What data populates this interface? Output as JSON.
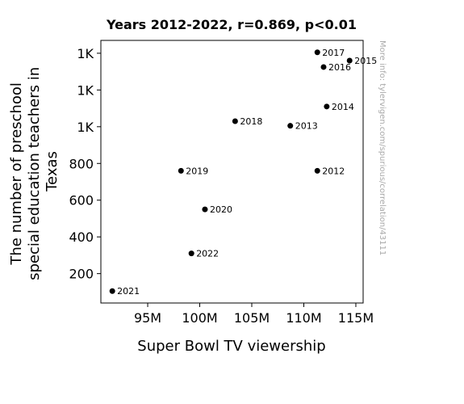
{
  "chart_data": {
    "type": "scatter",
    "title": "Years 2012-2022, r=0.869, p<0.01",
    "xlabel": "Super Bowl TV viewership",
    "ylabel": [
      "The number of preschool",
      "special education teachers in",
      "Texas"
    ],
    "xlim": [
      90500000,
      115700000
    ],
    "ylim": [
      40,
      1470
    ],
    "x_ticks": [
      {
        "value": 95000000,
        "label": "95M"
      },
      {
        "value": 100000000,
        "label": "100M"
      },
      {
        "value": 105000000,
        "label": "105M"
      },
      {
        "value": 110000000,
        "label": "110M"
      },
      {
        "value": 115000000,
        "label": "115M"
      }
    ],
    "y_ticks": [
      {
        "value": 200,
        "label": "200"
      },
      {
        "value": 400,
        "label": "400"
      },
      {
        "value": 600,
        "label": "600"
      },
      {
        "value": 800,
        "label": "800"
      },
      {
        "value": 1000,
        "label": "1K"
      },
      {
        "value": 1200,
        "label": "1K"
      },
      {
        "value": 1400,
        "label": "1K"
      }
    ],
    "points": [
      {
        "label": "2012",
        "x": 111300000,
        "y": 760
      },
      {
        "label": "2013",
        "x": 108700000,
        "y": 1005
      },
      {
        "label": "2014",
        "x": 112200000,
        "y": 1110
      },
      {
        "label": "2015",
        "x": 114400000,
        "y": 1360
      },
      {
        "label": "2016",
        "x": 111900000,
        "y": 1325
      },
      {
        "label": "2017",
        "x": 111300000,
        "y": 1405
      },
      {
        "label": "2018",
        "x": 103400000,
        "y": 1030
      },
      {
        "label": "2019",
        "x": 98200000,
        "y": 760
      },
      {
        "label": "2020",
        "x": 100500000,
        "y": 550
      },
      {
        "label": "2021",
        "x": 91600000,
        "y": 105
      },
      {
        "label": "2022",
        "x": 99200000,
        "y": 310
      }
    ],
    "grid": false,
    "marker_color": "#000000"
  },
  "side_note": "More info: tylervigen.com/spurious/correlation/43111"
}
